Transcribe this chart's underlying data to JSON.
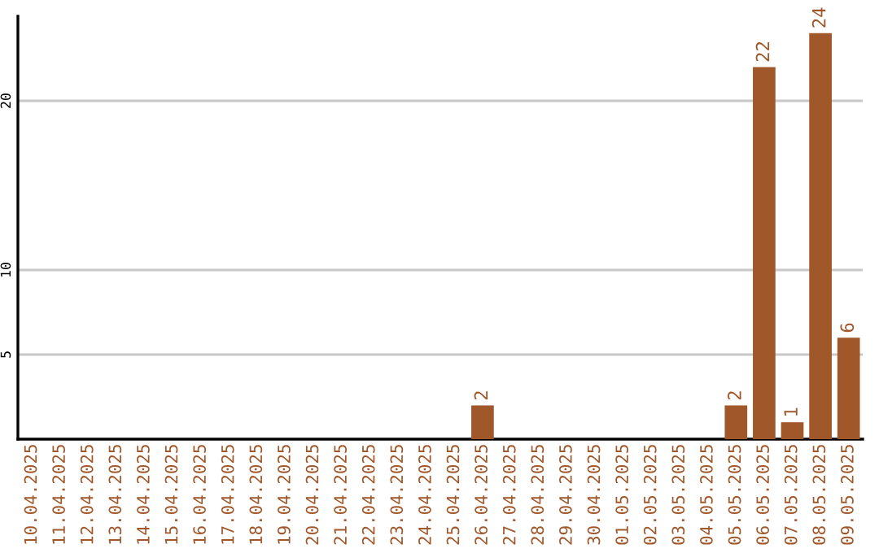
{
  "chart_data": {
    "type": "bar",
    "categories": [
      "10.04.2025",
      "11.04.2025",
      "12.04.2025",
      "13.04.2025",
      "14.04.2025",
      "15.04.2025",
      "16.04.2025",
      "17.04.2025",
      "18.04.2025",
      "19.04.2025",
      "20.04.2025",
      "21.04.2025",
      "22.04.2025",
      "23.04.2025",
      "24.04.2025",
      "25.04.2025",
      "26.04.2025",
      "27.04.2025",
      "28.04.2025",
      "29.04.2025",
      "30.04.2025",
      "01.05.2025",
      "02.05.2025",
      "03.05.2025",
      "04.05.2025",
      "05.05.2025",
      "06.05.2025",
      "07.05.2025",
      "08.05.2025",
      "09.05.2025"
    ],
    "values": [
      0,
      0,
      0,
      0,
      0,
      0,
      0,
      0,
      0,
      0,
      0,
      0,
      0,
      0,
      0,
      0,
      2,
      0,
      0,
      0,
      0,
      0,
      0,
      0,
      0,
      2,
      22,
      1,
      24,
      6
    ],
    "value_labels": [
      null,
      null,
      null,
      null,
      null,
      null,
      null,
      null,
      null,
      null,
      null,
      null,
      null,
      null,
      null,
      null,
      "2",
      null,
      null,
      null,
      null,
      null,
      null,
      null,
      null,
      "2",
      "22",
      "1",
      "24",
      "6"
    ],
    "color": "#a0572a",
    "ylim": [
      0,
      25
    ],
    "yticks": [
      5,
      10,
      20
    ],
    "grid": "y"
  }
}
